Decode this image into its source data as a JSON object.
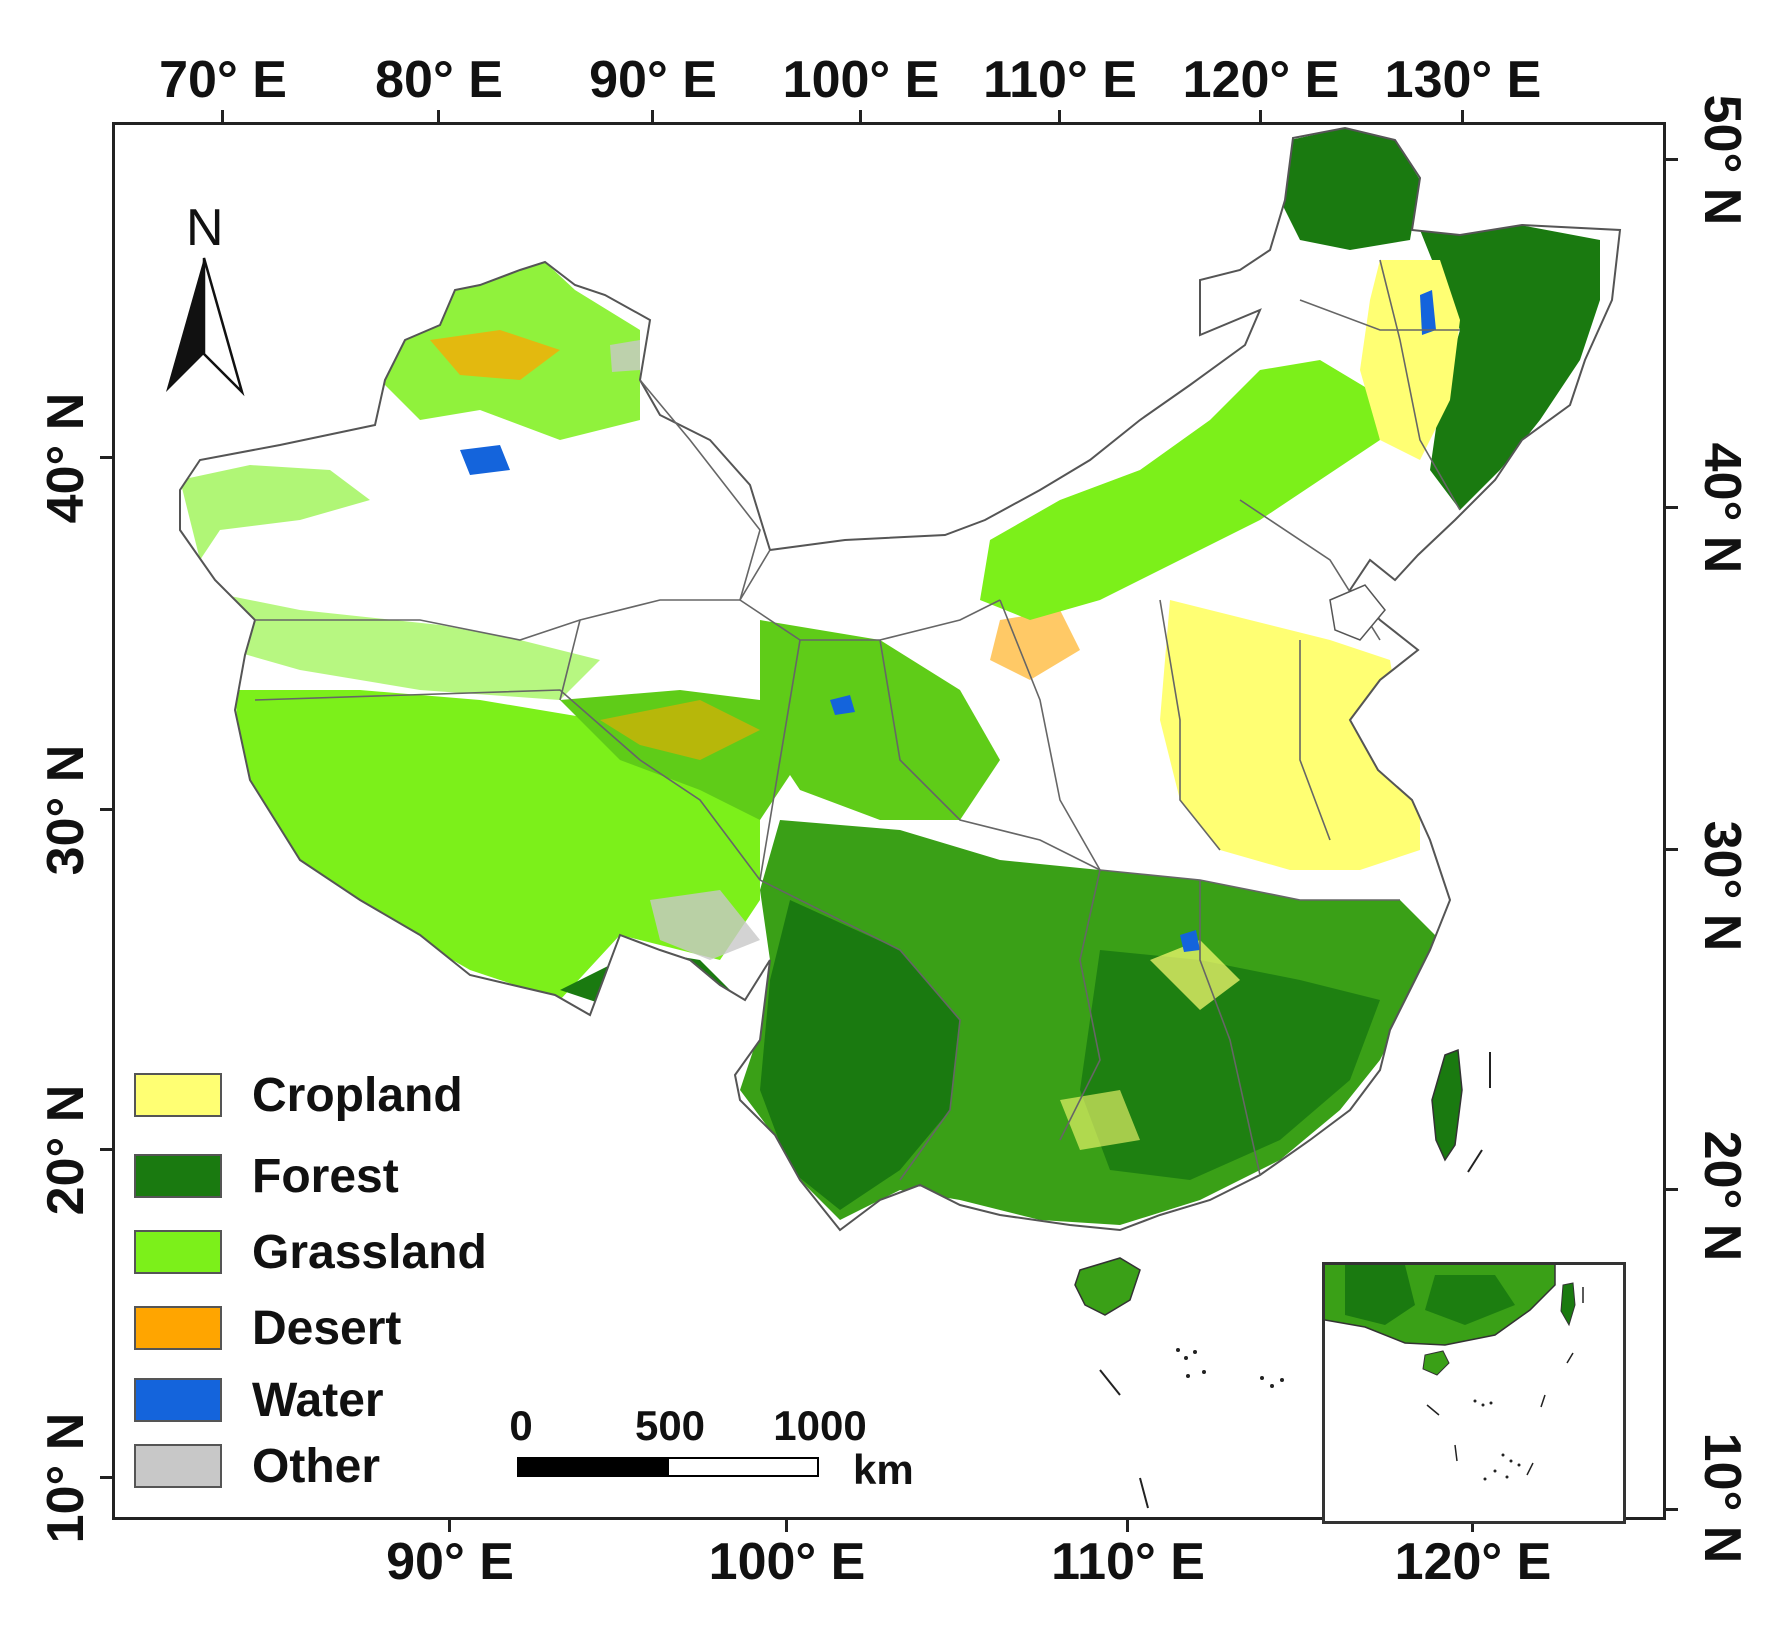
{
  "top_axis_labels": [
    "70° E",
    "80° E",
    "90° E",
    "100° E",
    "110° E",
    "120° E",
    "130° E"
  ],
  "bottom_axis_labels": [
    "90° E",
    "100° E",
    "110° E",
    "120° E"
  ],
  "left_axis_labels": [
    "40° N",
    "30° N",
    "20° N",
    "10° N"
  ],
  "right_axis_labels": [
    "50° N",
    "40° N",
    "30° N",
    "20° N",
    "10° N"
  ],
  "north_arrow": {
    "letter": "N",
    "icon": "north-arrow-icon"
  },
  "legend": [
    {
      "label": "Cropland",
      "color": "#ffff73"
    },
    {
      "label": "Forest",
      "color": "#1a7a10"
    },
    {
      "label": "Grassland",
      "color": "#7cf01a"
    },
    {
      "label": "Desert",
      "color": "#ffa500"
    },
    {
      "label": "Water",
      "color": "#1464dc"
    },
    {
      "label": "Other",
      "color": "#c8c8c8"
    }
  ],
  "scale_bar": {
    "ticks": [
      "0",
      "500",
      "1000"
    ],
    "unit": "km"
  },
  "colors": {
    "frame": "#222222",
    "province_border": "#555555"
  }
}
